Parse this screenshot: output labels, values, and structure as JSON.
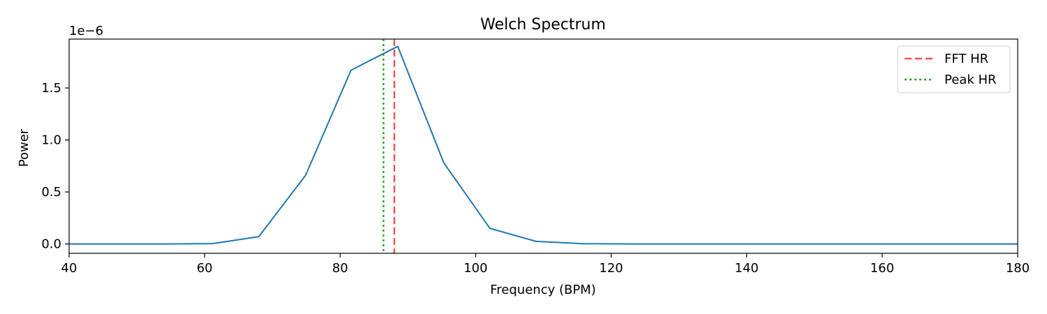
{
  "chart_data": {
    "type": "line",
    "title": "Welch Spectrum",
    "xlabel": "Frequency (BPM)",
    "ylabel": "Power",
    "y_scale_label": "1e−6",
    "xlim": [
      40,
      180
    ],
    "ylim": [
      -0.09,
      1.97
    ],
    "x_ticks": [
      40,
      60,
      80,
      100,
      120,
      140,
      160,
      180
    ],
    "x_tick_labels": [
      "40",
      "60",
      "80",
      "100",
      "120",
      "140",
      "160",
      "180"
    ],
    "y_ticks": [
      0.0,
      0.5,
      1.0,
      1.5
    ],
    "y_tick_labels": [
      "0.0",
      "0.5",
      "1.0",
      "1.5"
    ],
    "grid": false,
    "legend_position": "top-right",
    "series": [
      {
        "kind": "line",
        "color": "#1f77b4",
        "x": [
          40,
          47.5,
          54.4,
          61.2,
          68.0,
          74.9,
          81.6,
          88.5,
          95.3,
          102.1,
          108.9,
          115.8,
          122.6,
          129.4,
          136.2,
          143.1,
          149.9,
          156.7,
          163.5,
          170.4,
          177.2,
          180
        ],
        "y": [
          0.0,
          0.0,
          0.0,
          0.003,
          0.07,
          0.66,
          1.67,
          1.9,
          0.78,
          0.15,
          0.025,
          0.002,
          0.0,
          0.0,
          0.0,
          0.0,
          0.0,
          0.0,
          0.0,
          0.0,
          0.0,
          0.0
        ]
      },
      {
        "kind": "vline",
        "name": "FFT HR",
        "x": 88.0,
        "color": "#ff4d4d",
        "dash": "dashed"
      },
      {
        "kind": "vline",
        "name": "Peak HR",
        "x": 86.4,
        "color": "#2ca02c",
        "dash": "dotted"
      }
    ]
  }
}
